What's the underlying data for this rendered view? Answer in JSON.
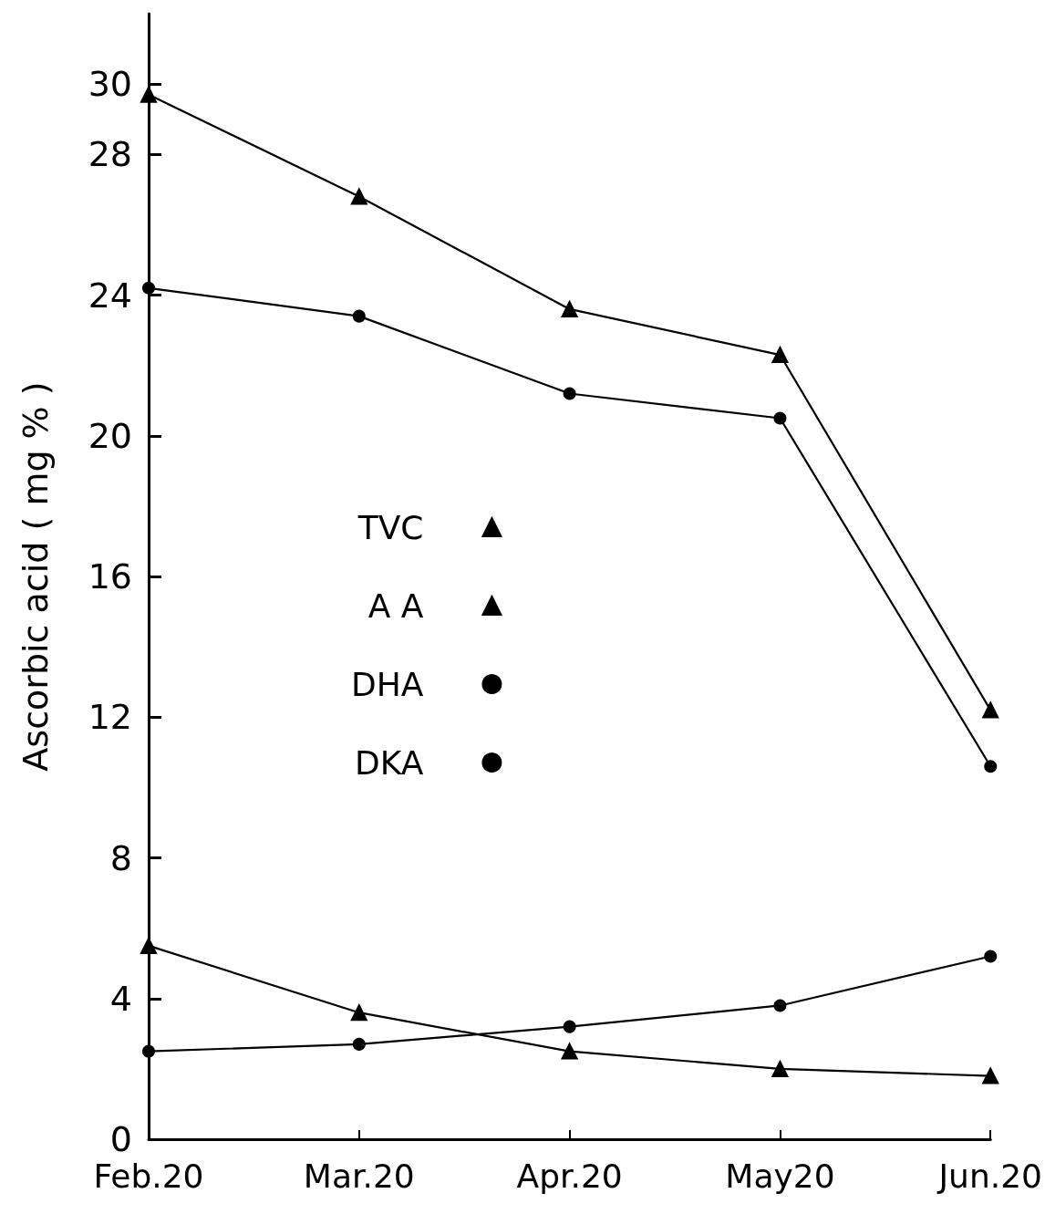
{
  "chart_data": {
    "type": "line",
    "ylabel": "Ascorbic acid ( mg % )",
    "categories": [
      "Feb.20",
      "Mar.20",
      "Apr.20",
      "May20",
      "Jun.20"
    ],
    "ylim": [
      0,
      32
    ],
    "yticks": [
      0,
      4,
      8,
      12,
      16,
      20,
      24,
      28,
      30
    ],
    "grid": false,
    "legend": "center",
    "line_style": "solid",
    "series": [
      {
        "name": "TVC",
        "color": "#000000",
        "marker": "triangle",
        "values": [
          29.7,
          26.8,
          23.6,
          22.3,
          12.2
        ]
      },
      {
        "name": "A A",
        "color": "#000000",
        "marker": "triangle",
        "values": [
          5.5,
          3.6,
          2.5,
          2.0,
          1.8
        ]
      },
      {
        "name": "DHA",
        "color": "#000000",
        "marker": "circle",
        "values": [
          24.2,
          23.4,
          21.2,
          20.5,
          10.6
        ]
      },
      {
        "name": "DKA",
        "color": "#000000",
        "marker": "circle",
        "values": [
          2.5,
          2.7,
          3.2,
          3.8,
          5.2
        ]
      }
    ]
  }
}
